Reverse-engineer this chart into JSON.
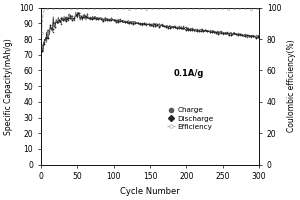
{
  "xlabel": "Cycle Number",
  "ylabel_left": "Specific Capacity(mAh/g)",
  "ylabel_right": "Coulombic efficiency(%)",
  "xlim": [
    0,
    300
  ],
  "ylim_left": [
    0,
    100
  ],
  "ylim_right": [
    0,
    100
  ],
  "annotation": "0.1A/g",
  "legend_labels": [
    "Charge",
    "Discharge",
    "Efficiency"
  ],
  "charge_color": "#555555",
  "discharge_color": "#222222",
  "efficiency_color": "#aaaaaa",
  "background_color": "#ffffff",
  "xticks": [
    0,
    50,
    100,
    150,
    200,
    250,
    300
  ],
  "yticks_left": [
    0,
    10,
    20,
    30,
    40,
    50,
    60,
    70,
    80,
    90,
    100
  ],
  "yticks_right": [
    0,
    20,
    40,
    60,
    80,
    100
  ]
}
